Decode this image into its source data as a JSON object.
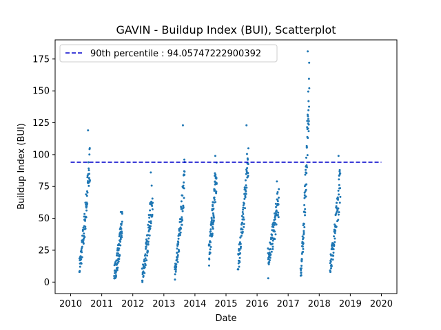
{
  "chart_data": {
    "type": "scatter",
    "title": "GAVIN - Buildup Index (BUI), Scatterplot",
    "xlabel": "Date",
    "ylabel": "Buildup Index (BUI)",
    "xlim": [
      2009.5,
      2020.5
    ],
    "ylim": [
      -9,
      190
    ],
    "x_ticks": [
      "2010",
      "2011",
      "2012",
      "2013",
      "2014",
      "2015",
      "2016",
      "2017",
      "2018",
      "2019",
      "2020"
    ],
    "y_ticks": [
      "0",
      "25",
      "50",
      "75",
      "100",
      "125",
      "150",
      "175"
    ],
    "grid": false,
    "legend_position": "top-left",
    "reference_line": {
      "label": "90th percentile : 94.05747222900392",
      "value": 94.05747222900392,
      "x_range": [
        2010.0,
        2020.0
      ],
      "color": "#0000cc",
      "style": "dashed"
    },
    "point_color": "#1f77b4",
    "seasons": [
      {
        "year": 2010,
        "start": 2010.28,
        "end": 2010.62,
        "bui_start": 12,
        "bui_peak": 95,
        "bui_max": 119,
        "bui_min": 8
      },
      {
        "year": 2011,
        "start": 2011.4,
        "end": 2011.66,
        "bui_start": 6,
        "bui_peak": 45,
        "bui_max": 55,
        "bui_min": 3
      },
      {
        "year": 2012,
        "start": 2012.3,
        "end": 2012.64,
        "bui_start": 5,
        "bui_peak": 70,
        "bui_max": 86,
        "bui_min": 0
      },
      {
        "year": 2013,
        "start": 2013.35,
        "end": 2013.67,
        "bui_start": 6,
        "bui_peak": 85,
        "bui_max": 123,
        "bui_min": 2
      },
      {
        "year": 2014,
        "start": 2014.45,
        "end": 2014.7,
        "bui_start": 25,
        "bui_peak": 90,
        "bui_max": 99,
        "bui_min": 13
      },
      {
        "year": 2015,
        "start": 2015.38,
        "end": 2015.72,
        "bui_start": 15,
        "bui_peak": 100,
        "bui_max": 123,
        "bui_min": 10
      },
      {
        "year": 2016,
        "start": 2016.35,
        "end": 2016.7,
        "bui_start": 20,
        "bui_peak": 65,
        "bui_max": 79,
        "bui_min": 3
      },
      {
        "year": 2017,
        "start": 2017.4,
        "end": 2017.68,
        "bui_start": 6,
        "bui_peak": 150,
        "bui_max": 181,
        "bui_min": 5
      },
      {
        "year": 2018,
        "start": 2018.35,
        "end": 2018.68,
        "bui_start": 15,
        "bui_peak": 80,
        "bui_max": 99,
        "bui_min": 8
      }
    ]
  }
}
